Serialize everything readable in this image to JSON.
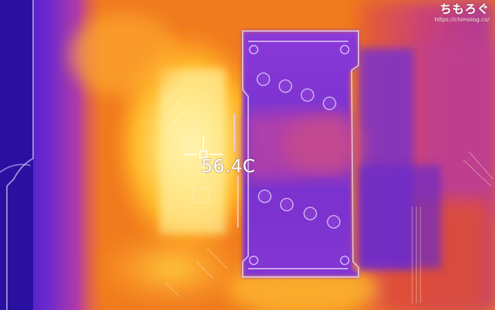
{
  "measurement": {
    "temperature": "56.4C"
  },
  "watermark": {
    "logo": "ちもろぐ",
    "url": "https://chimolog.co/"
  },
  "palette": {
    "cold": "#2a14a8",
    "cool": "#7a2fd0",
    "mid": "#d94a7a",
    "warm": "#f07a1e",
    "hot": "#ffc020",
    "hottest": "#fff3b0"
  }
}
